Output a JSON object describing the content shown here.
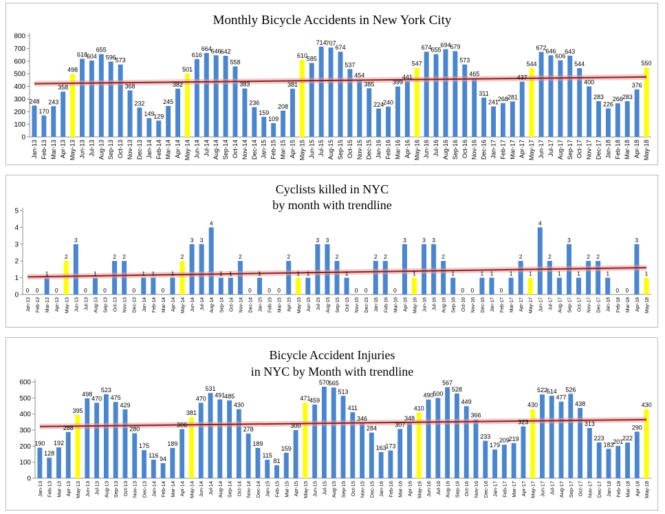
{
  "chart_data": [
    {
      "type": "bar",
      "title": "Monthly Bicycle Accidents in New York City",
      "title_lines": [
        "Monthly Bicycle Accidents in New York City"
      ],
      "categories": [
        "Jan-13",
        "Feb-13",
        "Mar-13",
        "Apr-13",
        "May-13",
        "Jun-13",
        "Jul-13",
        "Aug-13",
        "Sep-13",
        "Oct-13",
        "Nov-13",
        "Dec-13",
        "Jan-14",
        "Feb-14",
        "Mar-14",
        "Apr-14",
        "May-14",
        "Jun-14",
        "Jul-14",
        "Aug-14",
        "Sep-14",
        "Oct-14",
        "Nov-14",
        "Dec-14",
        "Jan-15",
        "Feb-15",
        "Mar-15",
        "Apr-15",
        "May-15",
        "Jun-15",
        "Jul-15",
        "Aug-15",
        "Sep-15",
        "Oct-15",
        "Nov-15",
        "Dec-15",
        "Jan-16",
        "Feb-16",
        "Mar-16",
        "Apr-16",
        "May-16",
        "Jun-16",
        "Jul-16",
        "Aug-16",
        "Sep-16",
        "Oct-16",
        "Nov-16",
        "Dec-16",
        "Jan-17",
        "Feb-17",
        "Mar-17",
        "Apr-17",
        "May-17",
        "Jun-17",
        "Jul-17",
        "Aug-17",
        "Sep-17",
        "Oct-17",
        "Nov-17",
        "Dec-17",
        "Jan-18",
        "Feb-18",
        "Mar-18",
        "Apr-18",
        "May-18"
      ],
      "values": [
        248,
        170,
        243,
        358,
        498,
        618,
        604,
        655,
        596,
        573,
        368,
        232,
        149,
        129,
        245,
        382,
        501,
        616,
        664,
        646,
        642,
        558,
        383,
        236,
        159,
        109,
        208,
        381,
        610,
        585,
        714,
        707,
        674,
        537,
        454,
        385,
        224,
        240,
        399,
        441,
        547,
        674,
        655,
        694,
        679,
        573,
        465,
        311,
        241,
        268,
        281,
        437,
        544,
        672,
        646,
        606,
        643,
        544,
        400,
        283,
        226,
        266,
        283,
        376,
        550
      ],
      "highlight_indices": [
        4,
        16,
        28,
        40,
        52,
        64
      ],
      "bar_color": "#4a86d0",
      "highlight_color": "#ffff00",
      "trendline_color": "#8b2020",
      "trendline": [
        421,
        474
      ],
      "xlabel": "",
      "ylabel": "",
      "ylim": [
        0,
        800
      ],
      "yticks": [
        0,
        100,
        200,
        300,
        400,
        500,
        600,
        700,
        800
      ],
      "grid": false,
      "legend": "none"
    },
    {
      "type": "bar",
      "title": "Cyclists killed in NYC by month with trendline",
      "title_lines": [
        "Cyclists killed in NYC",
        "by month with trendline"
      ],
      "categories": [
        "Jan-13",
        "Feb-13",
        "Mar-13",
        "Apr-13",
        "May-13",
        "Jun-13",
        "Jul-13",
        "Aug-13",
        "Sep-13",
        "Oct-13",
        "Nov-13",
        "Dec-13",
        "Jan-14",
        "Feb-14",
        "Mar-14",
        "Apr-14",
        "May-14",
        "Jun-14",
        "Jul-14",
        "Aug-14",
        "Sep-14",
        "Oct-14",
        "Nov-14",
        "Dec-14",
        "Jan-15",
        "Feb-15",
        "Mar-15",
        "Apr-15",
        "May-15",
        "Jun-15",
        "Jul-15",
        "Aug-15",
        "Sep-15",
        "Oct-15",
        "Nov-15",
        "Dec-15",
        "Jan-16",
        "Feb-16",
        "Mar-16",
        "Apr-16",
        "May-16",
        "Jun-16",
        "Jul-16",
        "Aug-16",
        "Sep-16",
        "Oct-16",
        "Nov-16",
        "Dec-16",
        "Jan-17",
        "Feb-17",
        "Mar-17",
        "Apr-17",
        "May-17",
        "Jun-17",
        "Jul-17",
        "Aug-17",
        "Sep-17",
        "Oct-17",
        "Nov-17",
        "Dec-17",
        "Jan-18",
        "Feb-18",
        "Mar-18",
        "Apr-18",
        "May-18"
      ],
      "values": [
        0,
        0,
        1,
        0,
        2,
        3,
        0,
        1,
        0,
        2,
        2,
        0,
        1,
        1,
        0,
        1,
        2,
        3,
        3,
        4,
        1,
        1,
        2,
        0,
        1,
        0,
        0,
        2,
        1,
        1,
        3,
        3,
        2,
        1,
        0,
        0,
        2,
        2,
        0,
        3,
        1,
        3,
        3,
        2,
        1,
        0,
        0,
        1,
        1,
        0,
        1,
        2,
        1,
        4,
        2,
        1,
        3,
        1,
        2,
        2,
        1,
        0,
        0,
        3,
        1
      ],
      "highlight_indices": [
        4,
        16,
        28,
        40,
        52,
        64
      ],
      "bar_color": "#4a86d0",
      "highlight_color": "#ffff00",
      "trendline_color": "#8b2020",
      "trendline": [
        1.05,
        1.6
      ],
      "xlabel": "",
      "ylabel": "",
      "ylim": [
        0,
        5
      ],
      "yticks": [
        0,
        1,
        2,
        3,
        4,
        5
      ],
      "grid": false,
      "legend": "none"
    },
    {
      "type": "bar",
      "title": "Bicycle Accident Injuries in NYC by Month with trendline",
      "title_lines": [
        "Bicycle Accident Injuries",
        "in NYC by Month with trendline"
      ],
      "categories": [
        "Jan-13",
        "Feb-13",
        "Mar-13",
        "Apr-13",
        "May-13",
        "Jun-13",
        "Jul-13",
        "Aug-13",
        "Sep-13",
        "Oct-13",
        "Nov-13",
        "Dec-13",
        "Jan-14",
        "Feb-14",
        "Mar-14",
        "Apr-14",
        "May-14",
        "Jun-14",
        "Jul-14",
        "Aug-14",
        "Sep-14",
        "Oct-14",
        "Nov-14",
        "Dec-14",
        "Jan-15",
        "Feb-15",
        "Mar-15",
        "Apr-15",
        "May-15",
        "Jun-15",
        "Jul-15",
        "Aug-15",
        "Sep-15",
        "Oct-15",
        "Nov-15",
        "Dec-15",
        "Jan-16",
        "Feb-16",
        "Mar-16",
        "Apr-16",
        "May-16",
        "Jun-16",
        "Jul-16",
        "Aug-16",
        "Sep-16",
        "Oct-16",
        "Nov-16",
        "Dec-16",
        "Jan-17",
        "Feb-17",
        "Mar-17",
        "Apr-17",
        "May-17",
        "Jun-17",
        "Jul-17",
        "Aug-17",
        "Sep-17",
        "Oct-17",
        "Nov-17",
        "Dec-17",
        "Jan-18",
        "Feb-18",
        "Mar-18",
        "Apr-18",
        "May-18"
      ],
      "values": [
        190,
        128,
        192,
        288,
        395,
        498,
        470,
        523,
        475,
        429,
        280,
        175,
        116,
        94,
        189,
        306,
        381,
        470,
        531,
        491,
        485,
        430,
        278,
        189,
        115,
        81,
        159,
        300,
        471,
        459,
        570,
        565,
        513,
        411,
        346,
        284,
        163,
        173,
        307,
        348,
        410,
        490,
        500,
        567,
        528,
        449,
        366,
        233,
        179,
        209,
        219,
        323,
        430,
        522,
        514,
        477,
        526,
        438,
        313,
        223,
        183,
        201,
        222,
        290,
        430
      ],
      "highlight_indices": [
        4,
        16,
        28,
        40,
        52,
        64
      ],
      "bar_color": "#4a86d0",
      "highlight_color": "#ffff00",
      "trendline_color": "#8b2020",
      "trendline": [
        322,
        365
      ],
      "xlabel": "",
      "ylabel": "",
      "ylim": [
        0,
        600
      ],
      "yticks": [
        0,
        100,
        200,
        300,
        400,
        500,
        600
      ],
      "grid": false,
      "legend": "none"
    }
  ]
}
